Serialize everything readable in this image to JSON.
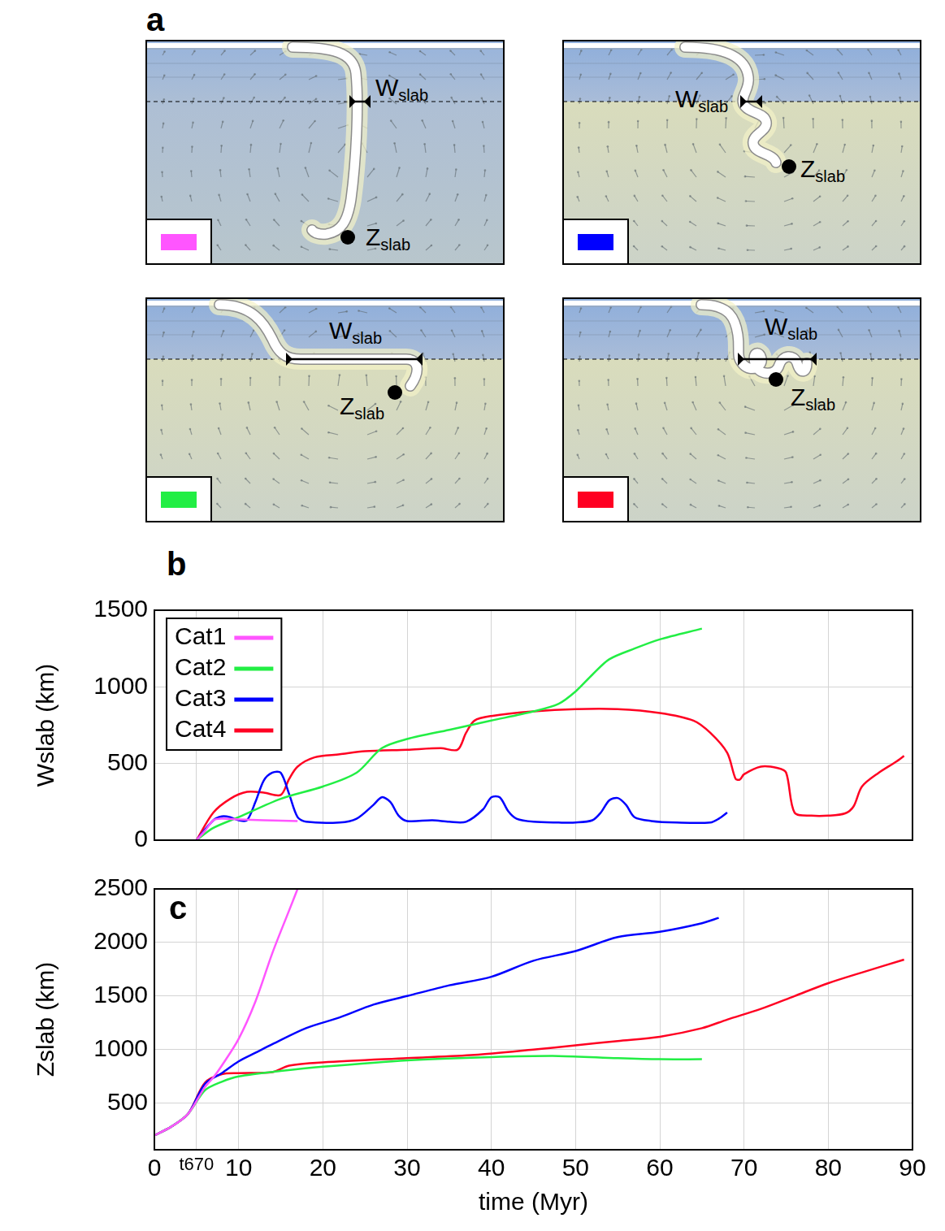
{
  "panel_a": {
    "panel_label": "a",
    "symbols": {
      "width": {
        "base": "W",
        "sub": "slab"
      },
      "depth": {
        "base": "Z",
        "sub": "slab"
      }
    },
    "panels": [
      {
        "color": "#ff55ff"
      },
      {
        "color": "#0000ff"
      },
      {
        "color": "#22ee44"
      },
      {
        "color": "#ff0022"
      }
    ]
  },
  "chart_data": [
    {
      "type": "line",
      "panel_label": "b",
      "y_label": "Wslab (km)",
      "xlim": [
        0,
        90
      ],
      "xticks": [
        0,
        {
          "value": 5,
          "label": "t670"
        },
        10,
        20,
        30,
        40,
        50,
        60,
        70,
        80,
        90
      ],
      "ylim": [
        0,
        1500
      ],
      "yticks": [
        0,
        500,
        1000,
        1500
      ],
      "grid": true,
      "legend": "upper left",
      "tick_labels": "y",
      "series": [
        {
          "name": "Cat1",
          "color": "#ff55ff",
          "x": [
            5,
            6,
            7,
            8,
            10,
            13,
            17
          ],
          "values": [
            0,
            60,
            130,
            140,
            135,
            130,
            125
          ]
        },
        {
          "name": "Cat2",
          "color": "#22ee44",
          "x": [
            5,
            7,
            10,
            15,
            20,
            24,
            27,
            30,
            35,
            40,
            45,
            48,
            50,
            52,
            54,
            57,
            60,
            65
          ],
          "values": [
            0,
            80,
            150,
            270,
            350,
            440,
            600,
            660,
            720,
            780,
            840,
            890,
            970,
            1080,
            1180,
            1250,
            1310,
            1380
          ]
        },
        {
          "name": "Cat3",
          "color": "#0000ff",
          "x": [
            5,
            7,
            8,
            9,
            10,
            11,
            12,
            13,
            14,
            15,
            16,
            17,
            18,
            22,
            24,
            26,
            27,
            28,
            29,
            30,
            33,
            35,
            37,
            39,
            40,
            41,
            42,
            43,
            45,
            48,
            50,
            52,
            53,
            54,
            55,
            56,
            57,
            59,
            62,
            66,
            67,
            68
          ],
          "values": [
            0,
            130,
            155,
            150,
            130,
            130,
            250,
            390,
            440,
            440,
            300,
            150,
            120,
            115,
            140,
            230,
            280,
            250,
            160,
            125,
            130,
            120,
            120,
            200,
            280,
            280,
            190,
            140,
            120,
            115,
            115,
            130,
            180,
            260,
            275,
            230,
            150,
            125,
            115,
            115,
            140,
            180
          ]
        },
        {
          "name": "Cat4",
          "color": "#ff0022",
          "x": [
            5,
            7,
            9,
            11,
            13,
            15,
            16,
            17,
            19,
            22,
            25,
            30,
            34,
            36,
            37,
            38,
            40,
            45,
            50,
            55,
            60,
            64,
            66,
            68,
            69,
            69.5,
            70,
            72,
            74,
            75,
            76,
            78,
            80,
            82,
            83,
            84,
            86,
            88,
            89
          ],
          "values": [
            0,
            180,
            270,
            315,
            310,
            295,
            400,
            480,
            540,
            560,
            580,
            590,
            600,
            590,
            700,
            780,
            810,
            840,
            855,
            855,
            830,
            780,
            700,
            570,
            400,
            395,
            430,
            480,
            470,
            440,
            180,
            160,
            160,
            175,
            220,
            350,
            440,
            510,
            550
          ]
        }
      ]
    },
    {
      "type": "line",
      "panel_label": "c",
      "x_label": "time (Myr)",
      "y_label": "Zslab (km)",
      "xlim": [
        0,
        90
      ],
      "xticks": [
        0,
        {
          "value": 5,
          "label": "t670"
        },
        10,
        20,
        30,
        40,
        50,
        60,
        70,
        80,
        90
      ],
      "ylim": [
        65,
        2500
      ],
      "yticks": [
        500,
        1000,
        1500,
        2000,
        2500
      ],
      "grid": true,
      "series": [
        {
          "name": "Cat1",
          "color": "#ff55ff",
          "x": [
            0,
            2,
            4,
            6,
            7,
            8,
            10,
            12,
            14,
            16,
            17
          ],
          "values": [
            200,
            280,
            400,
            650,
            740,
            850,
            1100,
            1450,
            1900,
            2300,
            2500
          ]
        },
        {
          "name": "Cat2",
          "color": "#22ee44",
          "x": [
            0,
            2,
            4,
            6,
            8,
            10,
            15,
            20,
            30,
            40,
            48,
            55,
            60,
            65
          ],
          "values": [
            200,
            280,
            400,
            620,
            700,
            750,
            800,
            840,
            900,
            930,
            940,
            920,
            910,
            910
          ]
        },
        {
          "name": "Cat3",
          "color": "#0000ff",
          "x": [
            0,
            2,
            4,
            6,
            8,
            10,
            12,
            14,
            18,
            22,
            26,
            30,
            35,
            40,
            45,
            50,
            55,
            60,
            65,
            67
          ],
          "values": [
            200,
            280,
            400,
            680,
            780,
            890,
            970,
            1050,
            1200,
            1300,
            1420,
            1500,
            1600,
            1680,
            1830,
            1920,
            2050,
            2100,
            2180,
            2230
          ]
        },
        {
          "name": "Cat4",
          "color": "#ff0022",
          "x": [
            0,
            2,
            4,
            6,
            8,
            10,
            14,
            16,
            20,
            30,
            38,
            45,
            50,
            55,
            60,
            65,
            68,
            72,
            76,
            80,
            84,
            89
          ],
          "values": [
            200,
            280,
            400,
            690,
            770,
            780,
            790,
            850,
            880,
            920,
            950,
            1000,
            1040,
            1080,
            1120,
            1200,
            1280,
            1380,
            1500,
            1620,
            1720,
            1840
          ]
        }
      ]
    }
  ]
}
